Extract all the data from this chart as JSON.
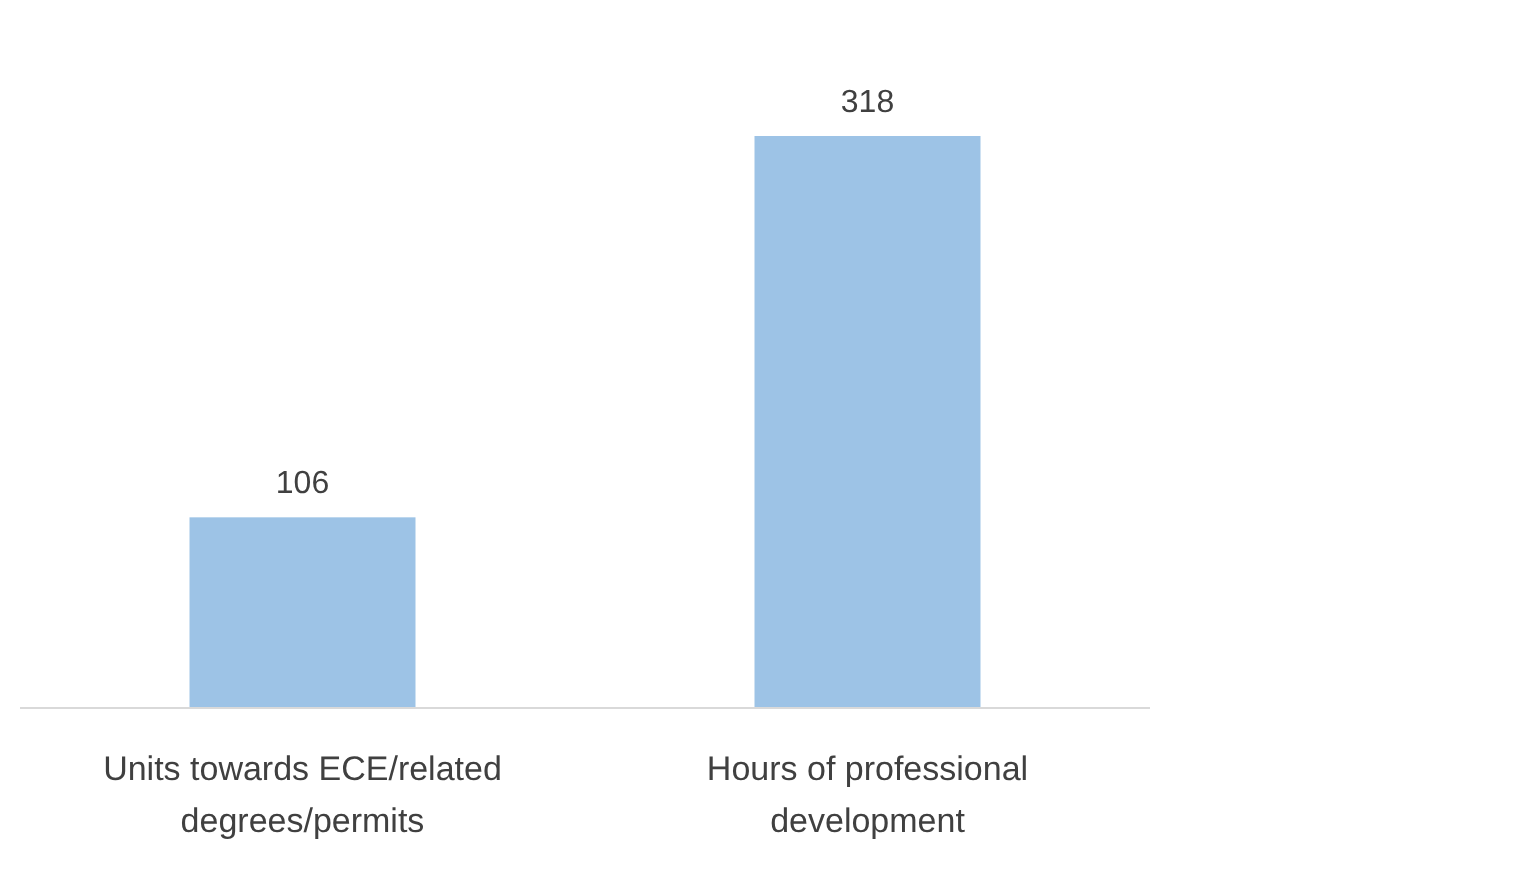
{
  "chart_data": {
    "type": "bar",
    "categories": [
      "Units towards ECE/related degrees/permits",
      "Hours of professional development"
    ],
    "values": [
      106,
      318
    ],
    "color": "#9dc3e6",
    "data_labels": true
  }
}
